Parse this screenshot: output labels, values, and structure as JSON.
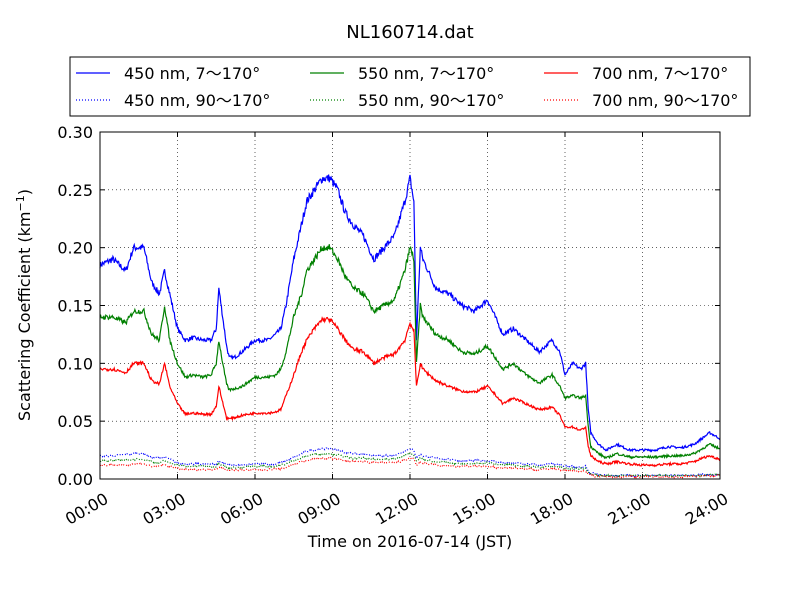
{
  "chart_data": {
    "type": "line",
    "title": "NL160714.dat",
    "xlabel": "Time on 2016-07-14 (JST)",
    "ylabel_main": "Scattering Coefficient (km",
    "ylabel_sup": "−1",
    "ylabel_close": ")",
    "xlim": [
      0,
      24
    ],
    "ylim": [
      0,
      0.3
    ],
    "x_tick_values": [
      0,
      3,
      6,
      9,
      12,
      15,
      18,
      21,
      24
    ],
    "x_tick_labels": [
      "00:00",
      "03:00",
      "06:00",
      "09:00",
      "12:00",
      "15:00",
      "18:00",
      "21:00",
      "24:00"
    ],
    "y_tick_values": [
      0,
      0.05,
      0.1,
      0.15,
      0.2,
      0.25,
      0.3
    ],
    "y_tick_labels": [
      "0.00",
      "0.05",
      "0.10",
      "0.15",
      "0.20",
      "0.25",
      "0.30"
    ],
    "grid": true,
    "legend_placement": "top, outside plot, 3 columns",
    "x": [
      0,
      0.5,
      1,
      1.3,
      1.7,
      2,
      2.3,
      2.5,
      2.7,
      3,
      3.3,
      3.6,
      4,
      4.3,
      4.5,
      4.6,
      4.75,
      4.9,
      5,
      5.2,
      5.5,
      6,
      6.5,
      6.8,
      7,
      7.2,
      7.5,
      7.8,
      8,
      8.3,
      8.6,
      8.9,
      9.2,
      9.5,
      9.8,
      10.2,
      10.6,
      11,
      11.4,
      11.8,
      12,
      12.15,
      12.25,
      12.4,
      12.5,
      13,
      13.5,
      14,
      14.5,
      15,
      15.3,
      15.6,
      16,
      16.5,
      17,
      17.5,
      17.8,
      18,
      18.3,
      18.6,
      18.8,
      18.9,
      19,
      19.3,
      19.6,
      20,
      20.5,
      21,
      21.5,
      22,
      22.5,
      23,
      23.3,
      23.6,
      24
    ],
    "series": [
      {
        "name": "450 nm, 7～170°",
        "color": "#0000ff",
        "style": "solid",
        "values": [
          0.185,
          0.19,
          0.18,
          0.2,
          0.2,
          0.17,
          0.16,
          0.18,
          0.16,
          0.13,
          0.12,
          0.122,
          0.12,
          0.12,
          0.13,
          0.165,
          0.14,
          0.115,
          0.105,
          0.105,
          0.11,
          0.12,
          0.12,
          0.125,
          0.13,
          0.15,
          0.19,
          0.22,
          0.24,
          0.25,
          0.26,
          0.26,
          0.25,
          0.23,
          0.22,
          0.21,
          0.19,
          0.2,
          0.21,
          0.24,
          0.26,
          0.24,
          0.12,
          0.2,
          0.19,
          0.165,
          0.16,
          0.15,
          0.145,
          0.155,
          0.14,
          0.125,
          0.13,
          0.12,
          0.11,
          0.12,
          0.11,
          0.09,
          0.1,
          0.095,
          0.1,
          0.06,
          0.04,
          0.03,
          0.025,
          0.03,
          0.025,
          0.025,
          0.025,
          0.028,
          0.027,
          0.03,
          0.035,
          0.04,
          0.035
        ]
      },
      {
        "name": "450 nm, 90～170°",
        "color": "#0000ff",
        "style": "dotted",
        "values": [
          0.02,
          0.02,
          0.021,
          0.022,
          0.022,
          0.019,
          0.018,
          0.019,
          0.017,
          0.014,
          0.013,
          0.013,
          0.013,
          0.013,
          0.013,
          0.016,
          0.014,
          0.013,
          0.012,
          0.012,
          0.012,
          0.013,
          0.013,
          0.013,
          0.014,
          0.016,
          0.019,
          0.022,
          0.024,
          0.025,
          0.026,
          0.026,
          0.025,
          0.023,
          0.022,
          0.021,
          0.02,
          0.02,
          0.021,
          0.024,
          0.026,
          0.025,
          0.018,
          0.021,
          0.02,
          0.018,
          0.017,
          0.016,
          0.016,
          0.016,
          0.015,
          0.014,
          0.014,
          0.013,
          0.012,
          0.013,
          0.012,
          0.011,
          0.011,
          0.01,
          0.011,
          0.007,
          0.005,
          0.004,
          0.003,
          0.003,
          0.003,
          0.003,
          0.003,
          0.003,
          0.003,
          0.003,
          0.004,
          0.004,
          0.004
        ]
      },
      {
        "name": "550 nm, 7～170°",
        "color": "#008000",
        "style": "solid",
        "values": [
          0.14,
          0.14,
          0.135,
          0.145,
          0.145,
          0.125,
          0.12,
          0.15,
          0.12,
          0.1,
          0.088,
          0.09,
          0.088,
          0.09,
          0.1,
          0.12,
          0.1,
          0.082,
          0.077,
          0.078,
          0.08,
          0.088,
          0.088,
          0.09,
          0.095,
          0.11,
          0.14,
          0.16,
          0.18,
          0.19,
          0.2,
          0.2,
          0.19,
          0.175,
          0.165,
          0.16,
          0.145,
          0.15,
          0.155,
          0.18,
          0.2,
          0.19,
          0.1,
          0.15,
          0.14,
          0.125,
          0.12,
          0.11,
          0.108,
          0.115,
          0.105,
          0.095,
          0.1,
          0.09,
          0.083,
          0.09,
          0.08,
          0.07,
          0.072,
          0.07,
          0.072,
          0.045,
          0.028,
          0.022,
          0.018,
          0.022,
          0.019,
          0.019,
          0.019,
          0.02,
          0.02,
          0.022,
          0.026,
          0.03,
          0.026
        ]
      },
      {
        "name": "550 nm, 90～170°",
        "color": "#008000",
        "style": "dotted",
        "values": [
          0.016,
          0.016,
          0.016,
          0.017,
          0.017,
          0.015,
          0.014,
          0.016,
          0.014,
          0.012,
          0.011,
          0.011,
          0.011,
          0.011,
          0.011,
          0.013,
          0.012,
          0.01,
          0.01,
          0.01,
          0.01,
          0.011,
          0.011,
          0.011,
          0.012,
          0.013,
          0.016,
          0.018,
          0.02,
          0.021,
          0.022,
          0.022,
          0.021,
          0.019,
          0.018,
          0.018,
          0.017,
          0.017,
          0.017,
          0.02,
          0.022,
          0.021,
          0.015,
          0.018,
          0.017,
          0.015,
          0.014,
          0.013,
          0.013,
          0.014,
          0.013,
          0.012,
          0.012,
          0.011,
          0.01,
          0.011,
          0.01,
          0.009,
          0.009,
          0.009,
          0.009,
          0.006,
          0.004,
          0.003,
          0.003,
          0.003,
          0.003,
          0.003,
          0.003,
          0.003,
          0.003,
          0.003,
          0.003,
          0.004,
          0.003
        ]
      },
      {
        "name": "700 nm, 7～170°",
        "color": "#ff0000",
        "style": "solid",
        "values": [
          0.095,
          0.095,
          0.092,
          0.1,
          0.1,
          0.085,
          0.082,
          0.1,
          0.08,
          0.065,
          0.056,
          0.057,
          0.056,
          0.056,
          0.063,
          0.08,
          0.066,
          0.053,
          0.052,
          0.053,
          0.055,
          0.057,
          0.057,
          0.058,
          0.06,
          0.072,
          0.09,
          0.11,
          0.12,
          0.13,
          0.138,
          0.138,
          0.13,
          0.12,
          0.112,
          0.11,
          0.1,
          0.105,
          0.108,
          0.12,
          0.135,
          0.128,
          0.08,
          0.1,
          0.095,
          0.085,
          0.08,
          0.076,
          0.075,
          0.08,
          0.073,
          0.065,
          0.07,
          0.065,
          0.06,
          0.062,
          0.055,
          0.045,
          0.045,
          0.042,
          0.045,
          0.028,
          0.02,
          0.015,
          0.013,
          0.015,
          0.013,
          0.012,
          0.012,
          0.013,
          0.013,
          0.015,
          0.018,
          0.02,
          0.017
        ]
      },
      {
        "name": "700 nm, 90～170°",
        "color": "#ff0000",
        "style": "dotted",
        "values": [
          0.012,
          0.012,
          0.012,
          0.013,
          0.013,
          0.011,
          0.011,
          0.012,
          0.011,
          0.009,
          0.008,
          0.008,
          0.008,
          0.008,
          0.009,
          0.01,
          0.009,
          0.008,
          0.008,
          0.008,
          0.008,
          0.008,
          0.008,
          0.009,
          0.009,
          0.01,
          0.013,
          0.015,
          0.016,
          0.017,
          0.018,
          0.018,
          0.017,
          0.016,
          0.015,
          0.015,
          0.014,
          0.014,
          0.014,
          0.016,
          0.018,
          0.017,
          0.012,
          0.014,
          0.014,
          0.012,
          0.011,
          0.011,
          0.011,
          0.011,
          0.01,
          0.009,
          0.01,
          0.009,
          0.008,
          0.009,
          0.008,
          0.007,
          0.007,
          0.007,
          0.007,
          0.005,
          0.003,
          0.002,
          0.002,
          0.002,
          0.002,
          0.002,
          0.002,
          0.002,
          0.002,
          0.002,
          0.003,
          0.003,
          0.003
        ]
      }
    ]
  }
}
